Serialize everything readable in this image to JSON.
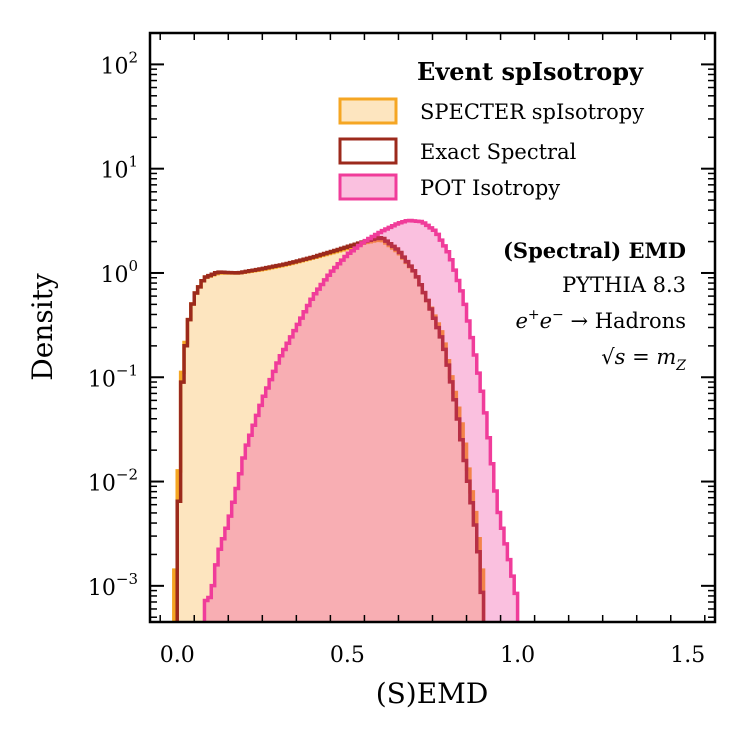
{
  "chart_data": {
    "type": "histogram",
    "title": "",
    "xlabel": "(S)EMD",
    "ylabel": "Density",
    "yscale": "log",
    "xlim": [
      -0.08,
      1.58
    ],
    "ylim": [
      0.00045,
      200
    ],
    "xticks": [
      {
        "value": 0.0,
        "label": "0.0"
      },
      {
        "value": 0.5,
        "label": "0.5"
      },
      {
        "value": 1.0,
        "label": "1.0"
      },
      {
        "value": 1.5,
        "label": "1.5"
      }
    ],
    "yticks": [
      {
        "value": 0.001,
        "base": "10",
        "exp": "−3"
      },
      {
        "value": 0.01,
        "base": "10",
        "exp": "−2"
      },
      {
        "value": 0.1,
        "base": "10",
        "exp": "−1"
      },
      {
        "value": 1,
        "base": "10",
        "exp": "0"
      },
      {
        "value": 10,
        "base": "10",
        "exp": "1"
      },
      {
        "value": 100,
        "base": "10",
        "exp": "2"
      }
    ],
    "legend": {
      "title": "Event spIsotropy",
      "position": "top-right",
      "entries": [
        {
          "label": "SPECTER spIsotropy",
          "series": 0
        },
        {
          "label": "Exact Spectral",
          "series": 1
        },
        {
          "label": "POT Isotropy",
          "series": 2
        }
      ]
    },
    "annotations": {
      "title": "(Spectral) EMD",
      "generator": "PYTHIA 8.3",
      "process": {
        "lhs": "e",
        "sup1": "+",
        "mid": "e",
        "sup2": "−",
        "arrow": " → Hadrons"
      },
      "energy": {
        "lhs": "√s = m",
        "sub": "Z"
      }
    },
    "series": [
      {
        "name": "SPECTER spIsotropy",
        "edge_color": "#f5a623",
        "fill_color": "#fde5bf",
        "points": [
          [
            -0.01,
            0.001
          ],
          [
            0.0,
            0.002
          ],
          [
            0.01,
            0.08
          ],
          [
            0.03,
            0.3
          ],
          [
            0.05,
            0.6
          ],
          [
            0.08,
            0.9
          ],
          [
            0.12,
            1.0
          ],
          [
            0.18,
            1.0
          ],
          [
            0.25,
            1.08
          ],
          [
            0.32,
            1.2
          ],
          [
            0.4,
            1.4
          ],
          [
            0.48,
            1.65
          ],
          [
            0.55,
            1.95
          ],
          [
            0.6,
            2.1
          ],
          [
            0.65,
            1.6
          ],
          [
            0.7,
            1.0
          ],
          [
            0.74,
            0.5
          ],
          [
            0.78,
            0.25
          ],
          [
            0.8,
            0.12
          ],
          [
            0.82,
            0.06
          ],
          [
            0.84,
            0.03
          ],
          [
            0.86,
            0.01
          ],
          [
            0.88,
            0.004
          ],
          [
            0.89,
            0.002
          ],
          [
            0.9,
            0.001
          ]
        ]
      },
      {
        "name": "Exact Spectral",
        "edge_color": "#9c2a1c",
        "fill_color": "none",
        "points": [
          [
            0.0,
            0.0007
          ],
          [
            0.01,
            0.06
          ],
          [
            0.03,
            0.3
          ],
          [
            0.05,
            0.6
          ],
          [
            0.08,
            0.9
          ],
          [
            0.12,
            1.02
          ],
          [
            0.18,
            1.0
          ],
          [
            0.25,
            1.1
          ],
          [
            0.32,
            1.22
          ],
          [
            0.4,
            1.42
          ],
          [
            0.48,
            1.7
          ],
          [
            0.55,
            2.0
          ],
          [
            0.6,
            2.2
          ],
          [
            0.65,
            1.65
          ],
          [
            0.7,
            1.0
          ],
          [
            0.74,
            0.5
          ],
          [
            0.78,
            0.22
          ],
          [
            0.8,
            0.11
          ],
          [
            0.82,
            0.05
          ],
          [
            0.84,
            0.02
          ],
          [
            0.86,
            0.008
          ],
          [
            0.88,
            0.003
          ],
          [
            0.89,
            0.0015
          ],
          [
            0.9,
            0.0005
          ]
        ]
      },
      {
        "name": "POT Isotropy",
        "edge_color": "#f03c9a",
        "fill_color": "rgba(240,60,154,0.32)",
        "points": [
          [
            0.08,
            0.0007
          ],
          [
            0.1,
            0.0008
          ],
          [
            0.12,
            0.002
          ],
          [
            0.15,
            0.004
          ],
          [
            0.18,
            0.01
          ],
          [
            0.2,
            0.02
          ],
          [
            0.25,
            0.06
          ],
          [
            0.3,
            0.15
          ],
          [
            0.35,
            0.3
          ],
          [
            0.4,
            0.6
          ],
          [
            0.45,
            1.0
          ],
          [
            0.5,
            1.5
          ],
          [
            0.55,
            2.0
          ],
          [
            0.6,
            2.5
          ],
          [
            0.65,
            3.0
          ],
          [
            0.68,
            3.2
          ],
          [
            0.72,
            3.1
          ],
          [
            0.76,
            2.5
          ],
          [
            0.8,
            1.5
          ],
          [
            0.84,
            0.6
          ],
          [
            0.87,
            0.2
          ],
          [
            0.9,
            0.06
          ],
          [
            0.92,
            0.02
          ],
          [
            0.94,
            0.006
          ],
          [
            0.96,
            0.003
          ],
          [
            0.98,
            0.0015
          ],
          [
            1.0,
            0.0007
          ]
        ]
      }
    ]
  }
}
